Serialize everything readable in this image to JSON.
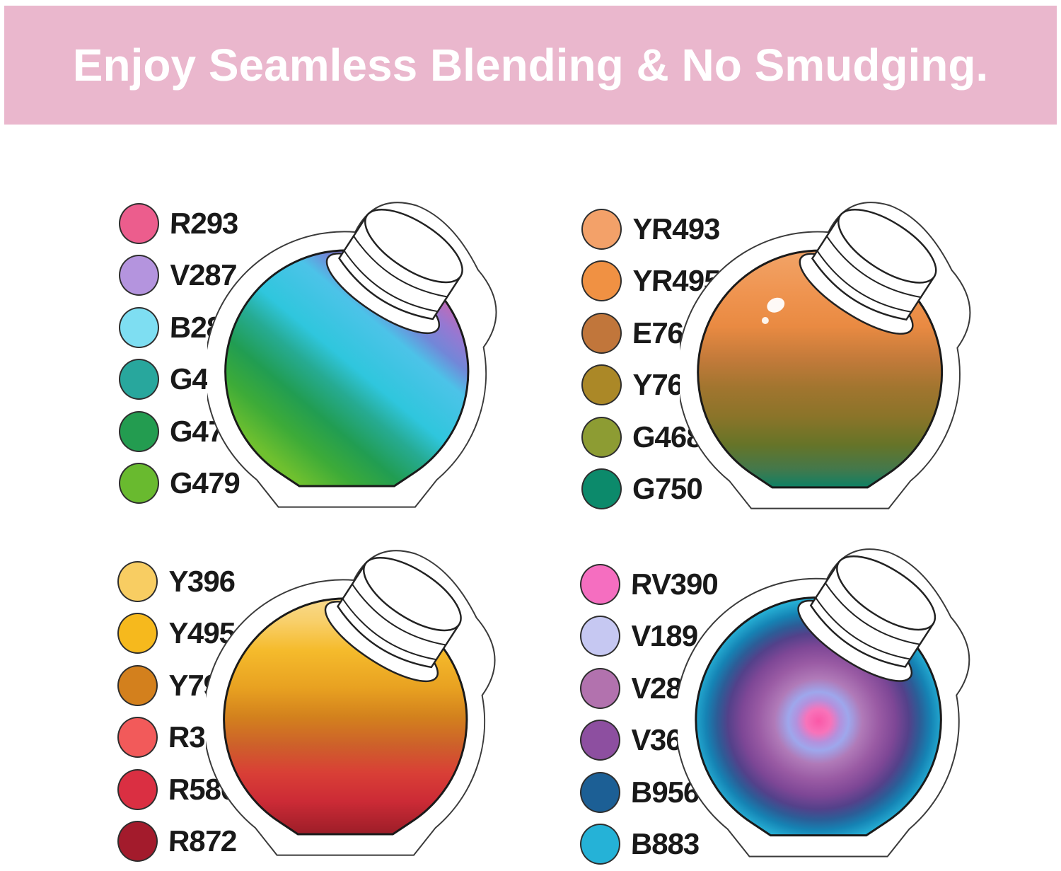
{
  "banner": {
    "text": "Enjoy Seamless Blending & No Smudging.",
    "background_color": "#eab7cd",
    "text_color": "#ffffff"
  },
  "quadrants": [
    {
      "position": "top-left",
      "blend_style": "diagonal-stripes",
      "swatches": [
        {
          "code": "R293",
          "color": "#ec5d8d"
        },
        {
          "code": "V287",
          "color": "#b494de"
        },
        {
          "code": "B289",
          "color": "#7edef2"
        },
        {
          "code": "G474",
          "color": "#28a79d"
        },
        {
          "code": "G472",
          "color": "#239c50"
        },
        {
          "code": "G479",
          "color": "#69ba2f"
        }
      ],
      "jar_blend": [
        [
          "0%",
          "#e95b8d"
        ],
        [
          "12%",
          "#c469b4"
        ],
        [
          "20%",
          "#9678d2"
        ],
        [
          "28%",
          "#7287d8"
        ],
        [
          "36%",
          "#4cc3e8"
        ],
        [
          "54%",
          "#2fc6dd"
        ],
        [
          "64%",
          "#26ab92"
        ],
        [
          "76%",
          "#219d52"
        ],
        [
          "88%",
          "#3dab38"
        ],
        [
          "100%",
          "#6fc02f"
        ]
      ]
    },
    {
      "position": "top-right",
      "blend_style": "horizontal-bands",
      "swatches": [
        {
          "code": "YR493",
          "color": "#f3a169"
        },
        {
          "code": "YR495",
          "color": "#f09143"
        },
        {
          "code": "E763",
          "color": "#c1763b"
        },
        {
          "code": "Y764",
          "color": "#ab8827"
        },
        {
          "code": "G468",
          "color": "#8d9c33"
        },
        {
          "code": "G750",
          "color": "#0c8a6b"
        }
      ],
      "jar_blend": [
        [
          "0%",
          "#f2a468"
        ],
        [
          "18%",
          "#ef9450"
        ],
        [
          "32%",
          "#e98a42"
        ],
        [
          "46%",
          "#c27a3a"
        ],
        [
          "58%",
          "#a1752f"
        ],
        [
          "70%",
          "#8b7429"
        ],
        [
          "82%",
          "#667428"
        ],
        [
          "92%",
          "#45784a"
        ],
        [
          "100%",
          "#0e8165"
        ]
      ]
    },
    {
      "position": "bottom-left",
      "blend_style": "horizontal-bands",
      "swatches": [
        {
          "code": "Y396",
          "color": "#f8cd62"
        },
        {
          "code": "Y495",
          "color": "#f6b91d"
        },
        {
          "code": "Y792",
          "color": "#d3801d"
        },
        {
          "code": "R393",
          "color": "#f25a5a"
        },
        {
          "code": "R586",
          "color": "#da2f42"
        },
        {
          "code": "R872",
          "color": "#a31b2c"
        }
      ],
      "jar_blend": [
        [
          "0%",
          "#f9d98c"
        ],
        [
          "10%",
          "#f8cf69"
        ],
        [
          "22%",
          "#f5bb2c"
        ],
        [
          "38%",
          "#e8a121"
        ],
        [
          "50%",
          "#d3821d"
        ],
        [
          "62%",
          "#cd612a"
        ],
        [
          "74%",
          "#d93f36"
        ],
        [
          "86%",
          "#cc2b36"
        ],
        [
          "100%",
          "#9c1d28"
        ]
      ]
    },
    {
      "position": "bottom-right",
      "blend_style": "tie-dye-radial",
      "swatches": [
        {
          "code": "RV390",
          "color": "#f56ec0"
        },
        {
          "code": "V189",
          "color": "#c6c8f2"
        },
        {
          "code": "V280",
          "color": "#b272ae"
        },
        {
          "code": "V369",
          "color": "#8d4fa0"
        },
        {
          "code": "B956",
          "color": "#1c5f95"
        },
        {
          "code": "B883",
          "color": "#25b2d7"
        }
      ],
      "jar_blend": [
        [
          "0%",
          "#fa58a7"
        ],
        [
          "9%",
          "#f873ba"
        ],
        [
          "16%",
          "#b391dd"
        ],
        [
          "22%",
          "#9ea7ec"
        ],
        [
          "32%",
          "#b07ab8"
        ],
        [
          "44%",
          "#9a5ba4"
        ],
        [
          "56%",
          "#7e4796"
        ],
        [
          "66%",
          "#53418a"
        ],
        [
          "74%",
          "#2c5d97"
        ],
        [
          "82%",
          "#1583b4"
        ],
        [
          "91%",
          "#25aed4"
        ],
        [
          "100%",
          "#1b7aa8"
        ]
      ]
    }
  ]
}
